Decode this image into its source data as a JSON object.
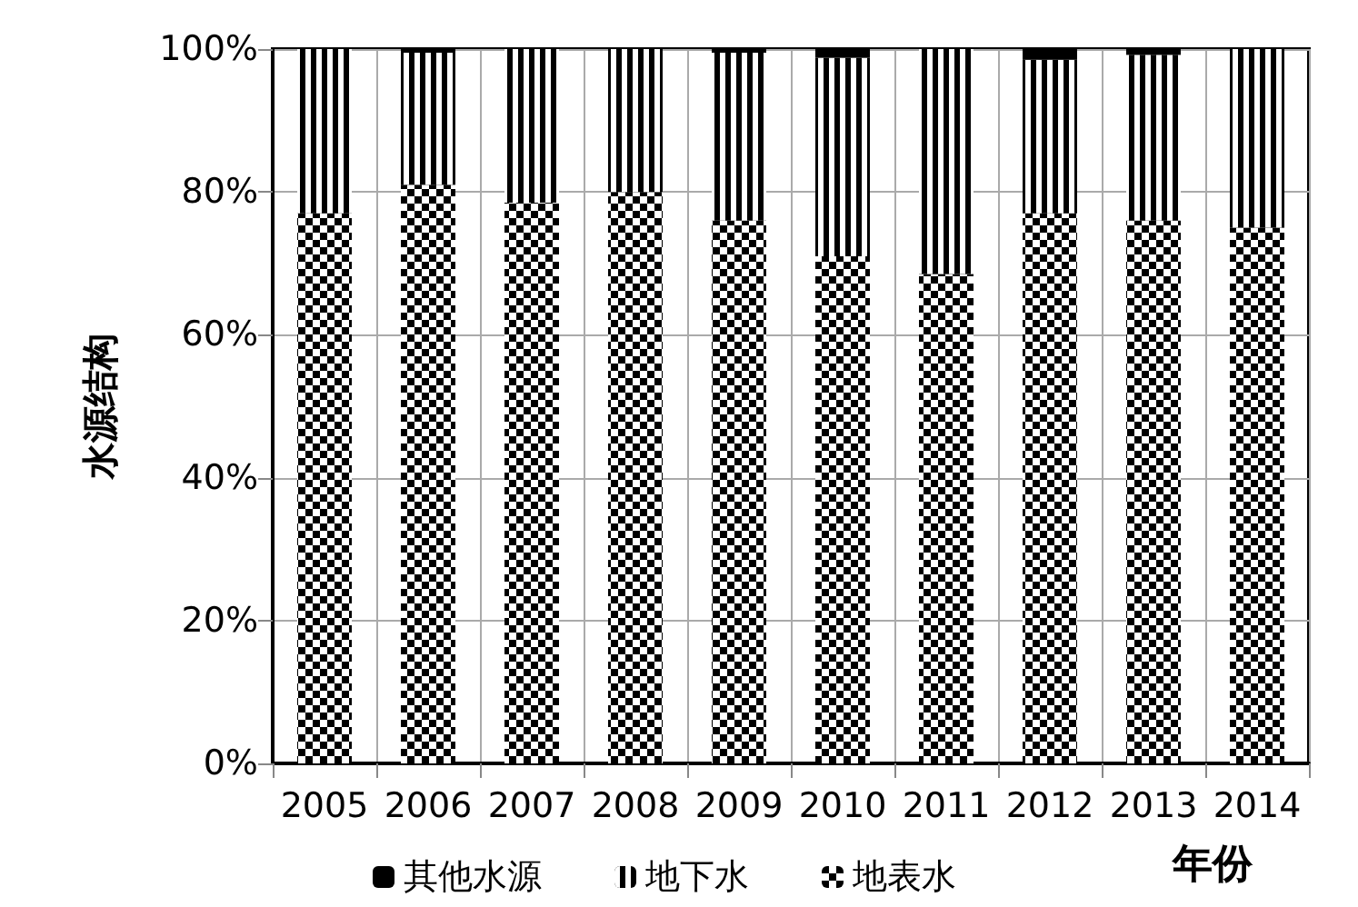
{
  "chart_data": {
    "type": "bar",
    "stacked": true,
    "xlabel": "年份",
    "ylabel": "水源结构",
    "categories": [
      "2005",
      "2006",
      "2007",
      "2008",
      "2009",
      "2010",
      "2011",
      "2012",
      "2013",
      "2014"
    ],
    "series": [
      {
        "name": "地表水",
        "color": "#000000",
        "values": [
          77,
          81,
          78.5,
          80,
          76,
          71,
          68.5,
          77,
          76,
          75
        ]
      },
      {
        "name": "地下水",
        "color": "#000000",
        "values": [
          23,
          18.5,
          21.5,
          20,
          23.5,
          27.8,
          31.5,
          21.5,
          23.2,
          25
        ]
      },
      {
        "name": "其他水源",
        "color": "#000000",
        "values": [
          0,
          0.5,
          0,
          0,
          0.5,
          1.2,
          0,
          1.5,
          0.8,
          0
        ]
      }
    ],
    "ylim": [
      0,
      100
    ],
    "yticks": [
      {
        "value": 0,
        "label": "0%"
      },
      {
        "value": 20,
        "label": "20%"
      },
      {
        "value": 40,
        "label": "40%"
      },
      {
        "value": 60,
        "label": "60%"
      },
      {
        "value": 80,
        "label": "80%"
      },
      {
        "value": 100,
        "label": "100%"
      }
    ],
    "grid": true,
    "legend": "bottom"
  }
}
